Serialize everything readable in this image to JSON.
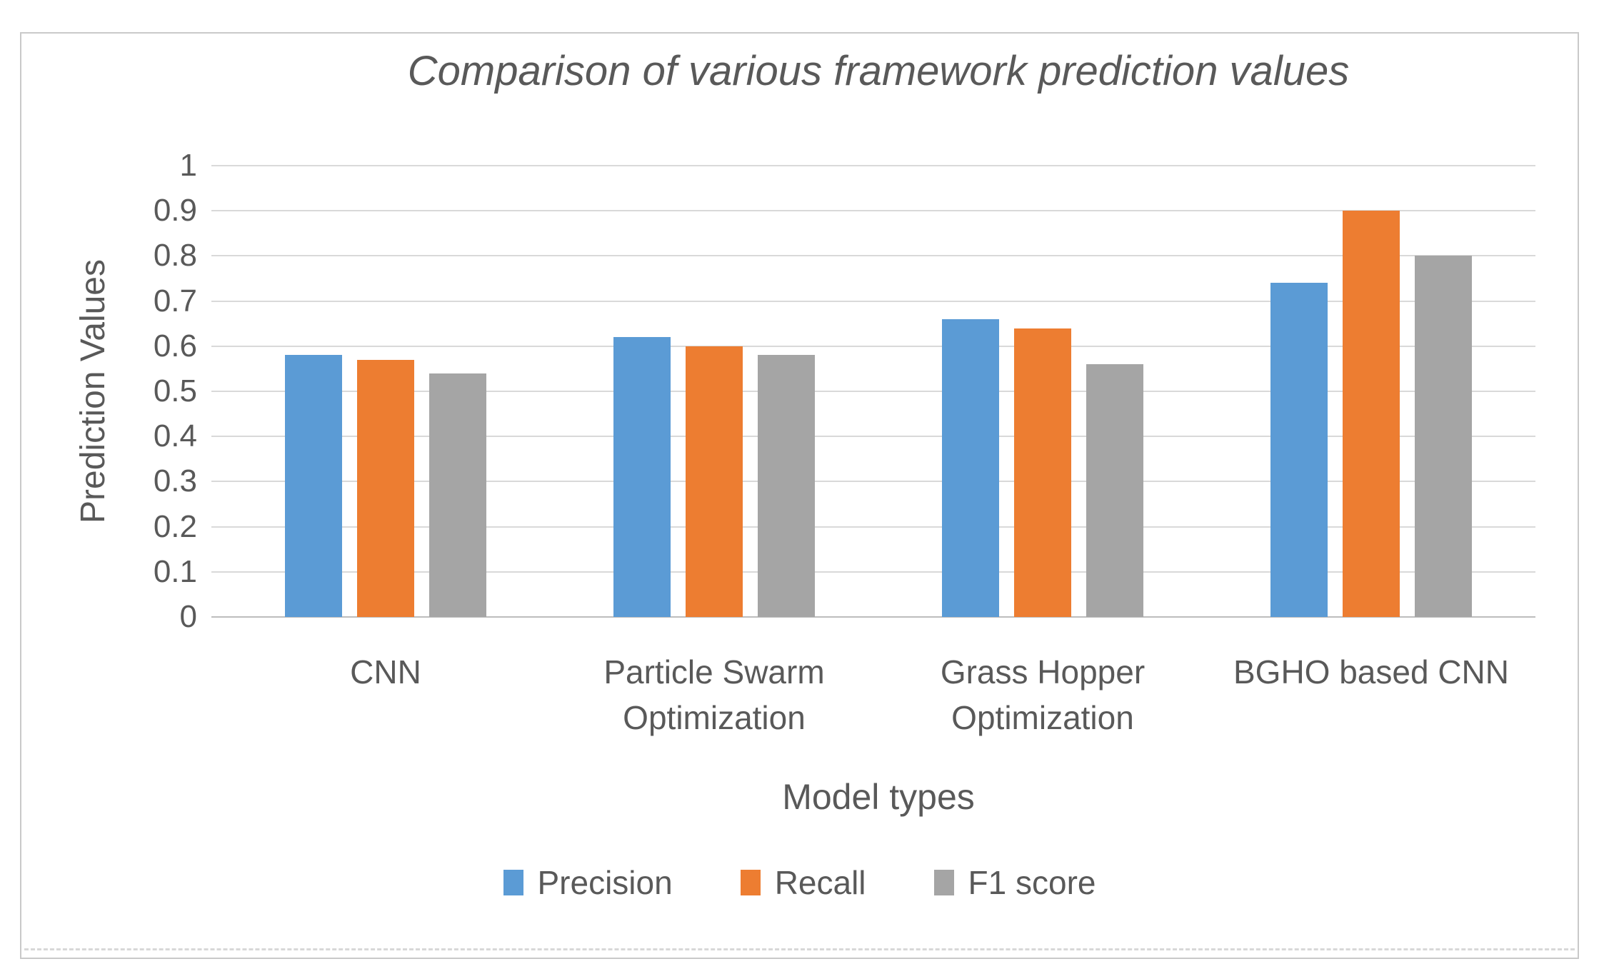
{
  "colors": {
    "precision": "#5B9BD5",
    "recall": "#ED7D31",
    "f1_score": "#A5A5A5",
    "gridline": "#D9D9D9",
    "axis_text": "#595959"
  },
  "chart_data": {
    "type": "bar",
    "title": "Comparison of various framework prediction values",
    "xlabel": "Model types",
    "ylabel": "Prediction Values",
    "categories": [
      "CNN",
      "Particle Swarm Optimization",
      "Grass Hopper Optimization",
      "BGHO based CNN"
    ],
    "series": [
      {
        "name": "Precision",
        "color": "#5B9BD5",
        "values": [
          0.58,
          0.62,
          0.66,
          0.74
        ]
      },
      {
        "name": "Recall",
        "color": "#ED7D31",
        "values": [
          0.57,
          0.6,
          0.64,
          0.9
        ]
      },
      {
        "name": "F1 score",
        "color": "#A5A5A5",
        "values": [
          0.54,
          0.58,
          0.56,
          0.8
        ]
      }
    ],
    "ylim": [
      0,
      1
    ],
    "ytick_step": 0.1,
    "yticks_labels": [
      "0",
      "0.1",
      "0.2",
      "0.3",
      "0.4",
      "0.5",
      "0.6",
      "0.7",
      "0.8",
      "0.9",
      "1"
    ],
    "grid": true,
    "legend_position": "bottom"
  }
}
